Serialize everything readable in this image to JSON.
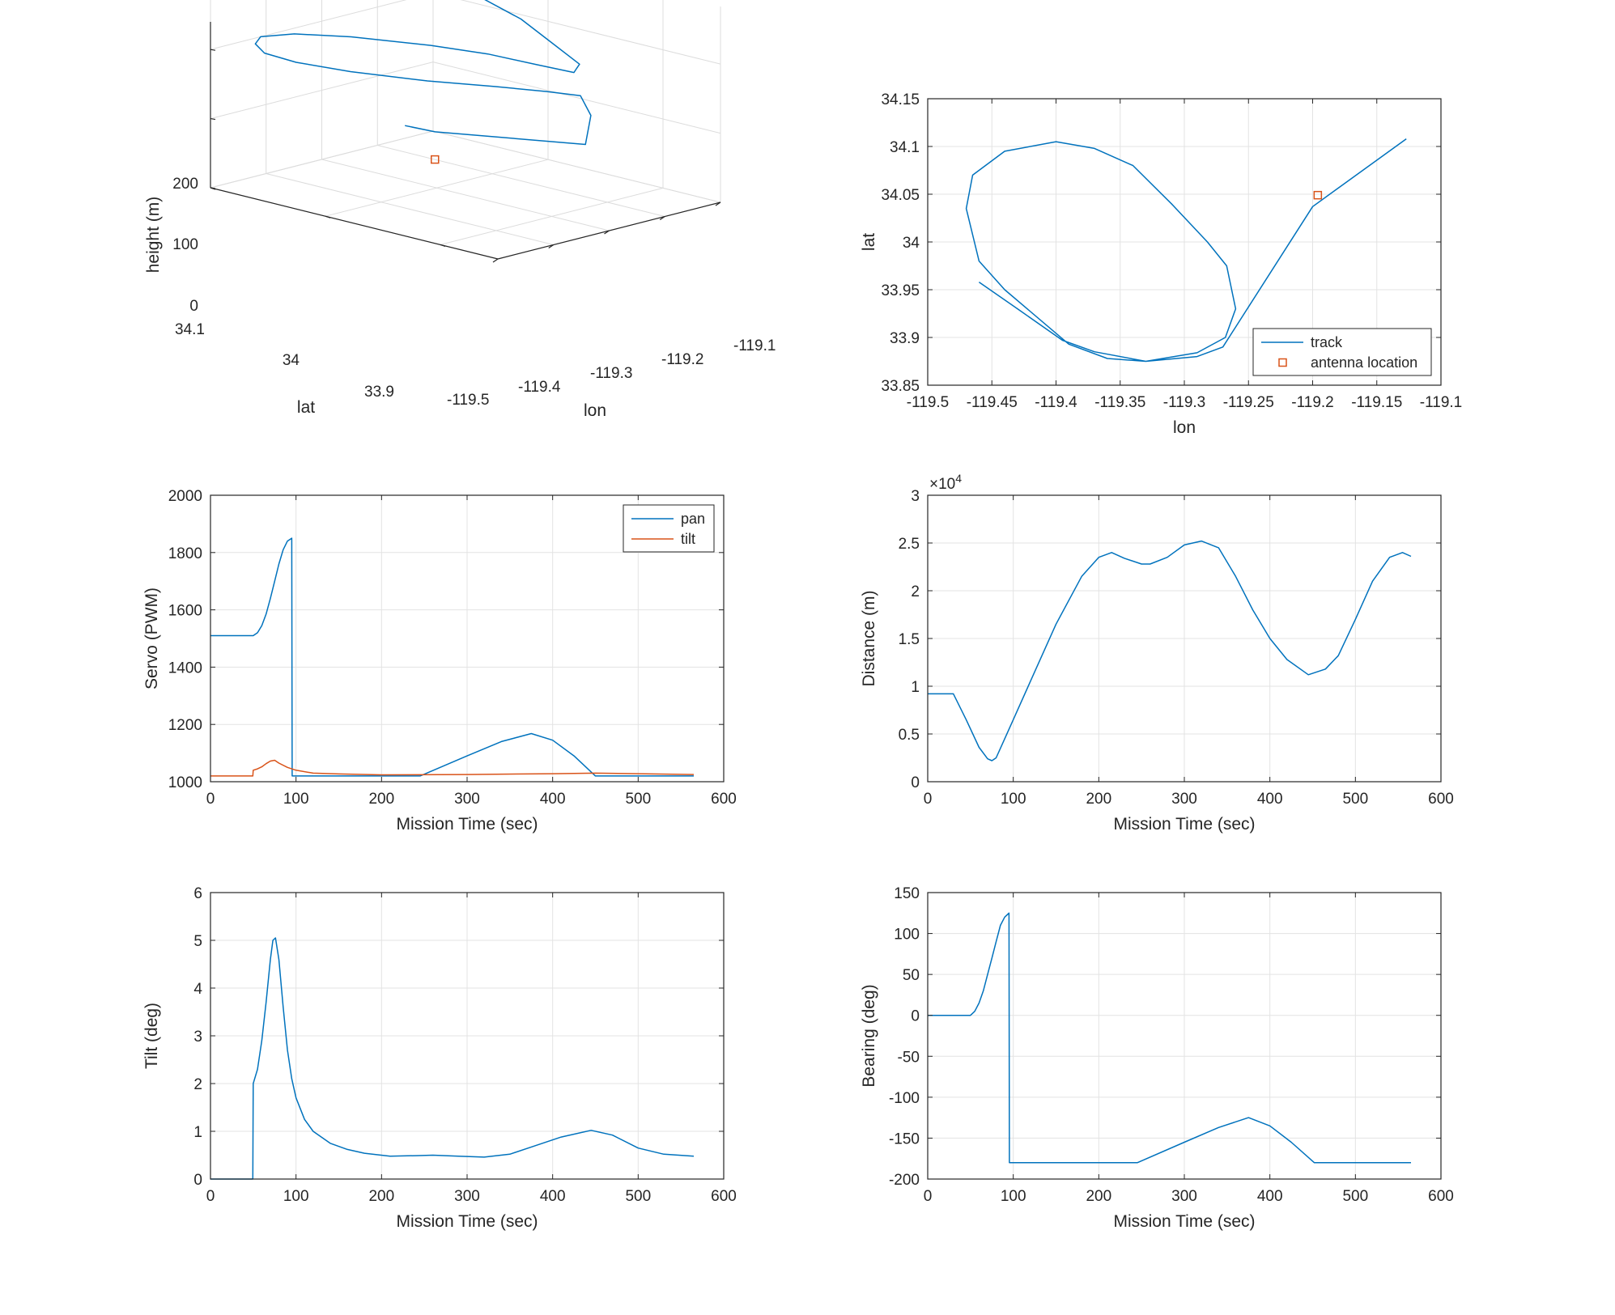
{
  "chart_data": [
    {
      "type": "line3d",
      "xlabel": "lon",
      "ylabel": "lat",
      "zlabel": "height (m)",
      "xticks": [
        "-119.5",
        "-119.4",
        "-119.3",
        "-119.2",
        "-119.1"
      ],
      "yticks": [
        "33.9",
        "34",
        "34.1"
      ],
      "zticks": [
        "0",
        "100",
        "200"
      ],
      "xlim": [
        -119.5,
        -119.1
      ],
      "ylim": [
        33.85,
        34.1
      ],
      "zlim": [
        0,
        240
      ],
      "grid": true,
      "colors": {
        "track": "#0072BD",
        "antenna": "#D95319"
      },
      "antenna": {
        "lon": -119.2,
        "lat": 34.05,
        "h": 0
      },
      "track": {
        "lon": [
          -119.13,
          -119.2,
          -119.26,
          -119.275,
          -119.3,
          -119.34,
          -119.38,
          -119.42,
          -119.455,
          -119.47,
          -119.465,
          -119.44,
          -119.41,
          -119.37,
          -119.33,
          -119.29,
          -119.27,
          -119.265,
          -119.26,
          -119.255,
          -119.25,
          -119.22,
          -119.19,
          -119.16,
          -119.14,
          -119.13
        ],
        "lat": [
          34.11,
          34.05,
          33.89,
          33.878,
          33.875,
          33.885,
          33.91,
          33.95,
          34.0,
          34.04,
          34.07,
          34.09,
          34.1,
          34.09,
          34.06,
          34.01,
          33.97,
          33.93,
          33.9,
          33.9,
          33.9,
          33.94,
          33.98,
          34.03,
          34.07,
          34.1
        ],
        "h": [
          10,
          40,
          100,
          150,
          185,
          195,
          200,
          200,
          200,
          200,
          200,
          200,
          200,
          200,
          200,
          200,
          200,
          200,
          200,
          205,
          210,
          220,
          230,
          235,
          240,
          240
        ]
      }
    },
    {
      "type": "line",
      "xlabel": "lon",
      "ylabel": "lat",
      "xlim": [
        -119.5,
        -119.1
      ],
      "ylim": [
        33.85,
        34.15
      ],
      "xticks": [
        "-119.5",
        "-119.45",
        "-119.4",
        "-119.35",
        "-119.3",
        "-119.25",
        "-119.2",
        "-119.15",
        "-119.1"
      ],
      "yticks": [
        "33.85",
        "33.9",
        "33.95",
        "34",
        "34.05",
        "34.1",
        "34.15"
      ],
      "grid": true,
      "legend_position": "bottom-right",
      "series": [
        {
          "name": "track",
          "color": "#0072BD",
          "x": [
            -119.127,
            -119.2,
            -119.27,
            -119.29,
            -119.33,
            -119.36,
            -119.39,
            -119.44,
            -119.46,
            -119.47,
            -119.465,
            -119.44,
            -119.4,
            -119.37,
            -119.34,
            -119.31,
            -119.282,
            -119.267,
            -119.26,
            -119.268,
            -119.29,
            -119.33,
            -119.37,
            -119.395,
            -119.43,
            -119.46
          ],
          "y": [
            34.108,
            34.037,
            33.89,
            33.88,
            33.875,
            33.878,
            33.893,
            33.95,
            33.98,
            34.035,
            34.07,
            34.095,
            34.105,
            34.098,
            34.08,
            34.04,
            34.0,
            33.975,
            33.93,
            33.9,
            33.884,
            33.875,
            33.885,
            33.897,
            33.93,
            33.958
          ]
        },
        {
          "name": "antenna location",
          "color": "#D95319",
          "marker": "square",
          "x": [
            -119.196
          ],
          "y": [
            34.049
          ]
        }
      ]
    },
    {
      "type": "line",
      "xlabel": "Mission Time (sec)",
      "ylabel": "Servo (PWM)",
      "xlim": [
        0,
        600
      ],
      "ylim": [
        1000,
        2000
      ],
      "xticks": [
        "0",
        "100",
        "200",
        "300",
        "400",
        "500",
        "600"
      ],
      "yticks": [
        "1000",
        "1200",
        "1400",
        "1600",
        "1800",
        "2000"
      ],
      "grid": true,
      "legend_position": "top-right",
      "series": [
        {
          "name": "pan",
          "color": "#0072BD",
          "x": [
            0,
            50,
            55,
            60,
            65,
            70,
            75,
            80,
            85,
            90,
            95,
            95.5,
            100,
            150,
            200,
            245,
            300,
            340,
            375,
            400,
            425,
            450,
            500,
            565
          ],
          "y": [
            1510,
            1510,
            1520,
            1545,
            1585,
            1640,
            1700,
            1760,
            1810,
            1840,
            1850,
            1020,
            1020,
            1020,
            1020,
            1020,
            1090,
            1140,
            1168,
            1145,
            1090,
            1020,
            1020,
            1020
          ]
        },
        {
          "name": "tilt",
          "color": "#D95319",
          "x": [
            0,
            49.5,
            50,
            55,
            60,
            65,
            70,
            75,
            80,
            90,
            100,
            120,
            150,
            200,
            300,
            400,
            450,
            500,
            565
          ],
          "y": [
            1020,
            1020,
            1040,
            1045,
            1052,
            1063,
            1072,
            1075,
            1065,
            1050,
            1040,
            1030,
            1027,
            1024,
            1025,
            1028,
            1030,
            1028,
            1025
          ]
        }
      ]
    },
    {
      "type": "line",
      "xlabel": "Mission Time (sec)",
      "ylabel": "Distance (m)",
      "exponent_label": "×10",
      "exponent_power": "4",
      "xlim": [
        0,
        600
      ],
      "ylim": [
        0,
        30000
      ],
      "xticks": [
        "0",
        "100",
        "200",
        "300",
        "400",
        "500",
        "600"
      ],
      "yticks": [
        "0",
        "0.5",
        "1",
        "1.5",
        "2",
        "2.5",
        "3"
      ],
      "grid": true,
      "series": [
        {
          "name": "",
          "color": "#0072BD",
          "x": [
            0,
            30,
            45,
            60,
            70,
            75,
            80,
            90,
            100,
            120,
            150,
            180,
            200,
            215,
            230,
            250,
            260,
            280,
            300,
            320,
            340,
            360,
            380,
            400,
            420,
            445,
            465,
            480,
            500,
            520,
            540,
            555,
            565
          ],
          "y": [
            9200,
            9200,
            6500,
            3600,
            2400,
            2200,
            2500,
            4500,
            6500,
            10500,
            16500,
            21500,
            23500,
            24000,
            23400,
            22800,
            22800,
            23500,
            24800,
            25200,
            24500,
            21500,
            18000,
            15000,
            12800,
            11200,
            11800,
            13200,
            17000,
            21000,
            23500,
            24000,
            23600
          ]
        }
      ]
    },
    {
      "type": "line",
      "xlabel": "Mission Time (sec)",
      "ylabel": "Tilt (deg)",
      "xlim": [
        0,
        600
      ],
      "ylim": [
        0,
        6
      ],
      "xticks": [
        "0",
        "100",
        "200",
        "300",
        "400",
        "500",
        "600"
      ],
      "yticks": [
        "0",
        "1",
        "2",
        "3",
        "4",
        "5",
        "6"
      ],
      "grid": true,
      "series": [
        {
          "name": "",
          "color": "#0072BD",
          "x": [
            0,
            49.5,
            50,
            55,
            60,
            65,
            70,
            73,
            76,
            80,
            85,
            90,
            95,
            100,
            110,
            120,
            140,
            160,
            180,
            210,
            240,
            260,
            290,
            320,
            350,
            380,
            410,
            445,
            470,
            500,
            530,
            565
          ],
          "y": [
            0,
            0,
            2.0,
            2.3,
            2.9,
            3.7,
            4.6,
            5.0,
            5.05,
            4.6,
            3.6,
            2.7,
            2.1,
            1.7,
            1.25,
            1.0,
            0.75,
            0.62,
            0.54,
            0.48,
            0.49,
            0.5,
            0.48,
            0.46,
            0.52,
            0.7,
            0.88,
            1.02,
            0.92,
            0.65,
            0.52,
            0.48
          ]
        }
      ]
    },
    {
      "type": "line",
      "xlabel": "Mission Time (sec)",
      "ylabel": "Bearing (deg)",
      "xlim": [
        0,
        600
      ],
      "ylim": [
        -200,
        150
      ],
      "xticks": [
        "0",
        "100",
        "200",
        "300",
        "400",
        "500",
        "600"
      ],
      "yticks": [
        "-200",
        "-150",
        "-100",
        "-50",
        "0",
        "50",
        "100",
        "150"
      ],
      "grid": true,
      "series": [
        {
          "name": "",
          "color": "#0072BD",
          "x": [
            0,
            50,
            55,
            60,
            65,
            70,
            75,
            80,
            85,
            90,
            95,
            95.5,
            100,
            150,
            200,
            245,
            300,
            340,
            375,
            400,
            425,
            452,
            500,
            565
          ],
          "y": [
            0,
            0,
            5,
            15,
            30,
            50,
            70,
            90,
            110,
            120,
            125,
            -180,
            -180,
            -180,
            -180,
            -180,
            -155,
            -137,
            -125,
            -135,
            -155,
            -180,
            -180,
            -180
          ]
        }
      ]
    }
  ]
}
